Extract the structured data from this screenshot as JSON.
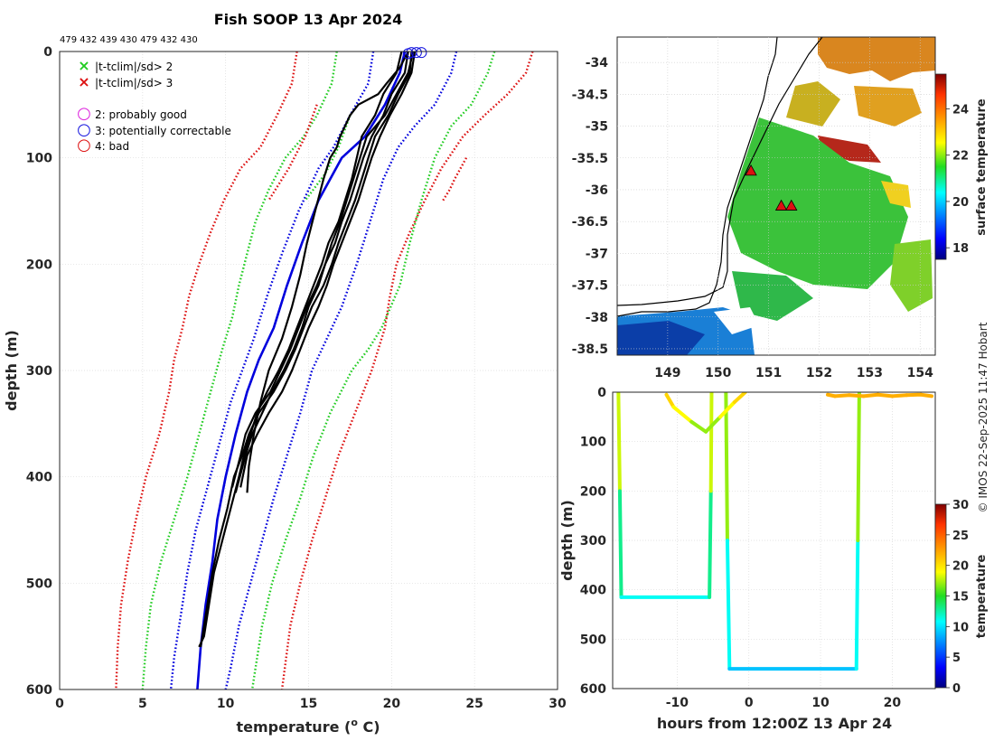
{
  "header": {
    "title": "Fish SOOP 13 Apr 2024",
    "ids": "479 432 439 430 479 432 430"
  },
  "credit": "© IMOS 22-Sep-2025 11:47 Hobart",
  "chart_data": [
    {
      "id": "profile",
      "type": "line",
      "xlabel": "temperature (",
      "xlabel_sup": "o",
      "xlabel_tail": " C)",
      "ylabel": "depth (m)",
      "xlim": [
        0,
        30
      ],
      "ylim": [
        600,
        0
      ],
      "xticks": [
        0,
        5,
        10,
        15,
        20,
        25,
        30
      ],
      "yticks": [
        0,
        100,
        200,
        300,
        400,
        500,
        600
      ],
      "legend": [
        {
          "symbol": "×",
          "color": "#22cc22",
          "label": "|t-tclim|/sd> 2"
        },
        {
          "symbol": "×",
          "color": "#dd1111",
          "label": "|t-tclim|/sd> 3"
        },
        {
          "symbol": "○",
          "color": "#dd22dd",
          "label": "2: probably good"
        },
        {
          "symbol": "○",
          "color": "#1111dd",
          "label": "3: potentially correctable"
        },
        {
          "symbol": "○",
          "color": "#dd1111",
          "label": "4: bad"
        }
      ],
      "climatology": [
        {
          "name": "clim-mean",
          "color": "#0000dd",
          "dotted": false,
          "x": [
            20.8,
            20.5,
            19.6,
            18.4,
            17.0,
            15.6,
            14.6,
            13.7,
            12.9,
            12.0,
            11.3,
            10.6,
            10.0,
            9.5,
            9.2,
            8.8,
            8.5,
            8.3
          ],
          "depth": [
            0,
            20,
            50,
            80,
            100,
            140,
            180,
            220,
            260,
            290,
            320,
            360,
            400,
            440,
            480,
            520,
            560,
            600
          ]
        },
        {
          "name": "clim-minus-1sd",
          "color": "#0000dd",
          "dotted": true,
          "x": [
            18.9,
            18.6,
            17.5,
            16.5,
            15.6,
            14.4,
            13.4,
            12.5,
            11.7,
            11.0,
            10.3,
            9.6,
            8.9,
            8.2,
            7.7,
            7.3,
            6.9,
            6.7
          ],
          "depth": [
            0,
            30,
            60,
            90,
            110,
            150,
            190,
            230,
            270,
            300,
            330,
            370,
            410,
            450,
            490,
            530,
            570,
            600
          ]
        },
        {
          "name": "clim-plus-1sd",
          "color": "#0000dd",
          "dotted": true,
          "x": [
            23.9,
            23.6,
            22.6,
            21.4,
            20.4,
            19.5,
            18.7,
            17.9,
            17.0,
            16.1,
            15.2,
            14.5,
            13.7,
            12.9,
            12.2,
            11.5,
            10.8,
            10.3,
            10.0
          ],
          "depth": [
            0,
            20,
            50,
            70,
            90,
            120,
            160,
            200,
            240,
            270,
            300,
            340,
            380,
            420,
            460,
            500,
            540,
            580,
            600
          ]
        },
        {
          "name": "clim-minus-2sd",
          "color": "#22cc22",
          "dotted": true,
          "x": [
            16.7,
            16.4,
            15.5,
            14.7,
            13.6,
            12.6,
            11.8,
            11.3,
            10.8,
            10.4,
            9.8,
            9.1,
            8.4,
            7.7,
            6.9,
            6.1,
            5.5,
            5.2,
            5.0
          ],
          "depth": [
            0,
            30,
            60,
            80,
            100,
            130,
            160,
            190,
            220,
            250,
            280,
            320,
            360,
            400,
            440,
            480,
            520,
            560,
            600
          ]
        },
        {
          "name": "clim-plus-2sd",
          "color": "#22cc22",
          "dotted": true,
          "x": [
            26.2,
            25.8,
            24.8,
            23.6,
            22.6,
            21.8,
            21.1,
            20.5,
            19.4,
            18.6,
            17.6,
            16.3,
            15.3,
            14.5,
            13.6,
            12.8,
            12.2,
            11.8,
            11.6
          ],
          "depth": [
            0,
            20,
            50,
            70,
            100,
            140,
            180,
            220,
            260,
            280,
            300,
            340,
            380,
            420,
            460,
            500,
            540,
            580,
            600
          ]
        },
        {
          "name": "clim-minus-3sd",
          "color": "#dd1111",
          "dotted": true,
          "x": [
            14.3,
            14.0,
            13.1,
            12.1,
            10.9,
            9.9,
            9.1,
            8.4,
            7.8,
            7.4,
            6.9,
            6.6,
            6.0,
            5.2,
            4.6,
            4.1,
            3.7,
            3.5,
            3.4
          ],
          "depth": [
            0,
            30,
            60,
            90,
            110,
            140,
            170,
            200,
            230,
            260,
            290,
            320,
            360,
            400,
            440,
            480,
            520,
            560,
            600
          ]
        },
        {
          "name": "clim-plus-3sd",
          "color": "#dd1111",
          "dotted": true,
          "x": [
            28.5,
            28.1,
            27.0,
            25.6,
            24.3,
            23.0,
            22.0,
            21.1,
            20.3,
            19.9,
            19.6,
            18.8,
            17.8,
            16.8,
            16.0,
            15.2,
            14.5,
            13.9,
            13.4
          ],
          "depth": [
            0,
            20,
            40,
            60,
            80,
            110,
            140,
            170,
            200,
            230,
            260,
            300,
            340,
            380,
            420,
            460,
            500,
            540,
            600
          ]
        },
        {
          "name": "clim-partial-left",
          "color": "#dd1111",
          "dotted": true,
          "x": [
            15.5,
            14.8,
            13.8,
            12.6
          ],
          "depth": [
            50,
            80,
            110,
            140
          ]
        },
        {
          "name": "clim-partial-green",
          "color": "#22cc22",
          "dotted": true,
          "x": [
            17.5,
            16.8,
            16.0,
            14.8
          ],
          "depth": [
            60,
            90,
            115,
            140
          ]
        },
        {
          "name": "clim-partial-right",
          "color": "#dd1111",
          "dotted": true,
          "x": [
            24.5,
            23.8,
            23.5,
            23.1
          ],
          "depth": [
            100,
            120,
            130,
            140
          ]
        }
      ],
      "profiles": [
        {
          "name": "cast-1",
          "x": [
            21.2,
            21.1,
            20.4,
            19.8,
            19.0,
            18.6,
            18.2,
            17.8,
            17.3,
            16.8,
            16.4,
            15.9,
            15.2,
            14.7,
            14.2,
            13.6,
            12.9,
            12.0,
            11.4,
            11.0,
            10.5,
            10.1,
            9.6,
            9.2,
            8.9,
            8.6,
            8.5
          ],
          "depth": [
            0,
            20,
            40,
            60,
            80,
            100,
            120,
            140,
            160,
            180,
            200,
            220,
            240,
            260,
            280,
            300,
            320,
            340,
            360,
            380,
            400,
            430,
            460,
            490,
            520,
            550,
            560
          ]
        },
        {
          "name": "cast-2",
          "x": [
            21.0,
            20.8,
            20.0,
            19.5,
            18.8,
            18.3,
            17.9,
            17.5,
            17.0,
            16.6,
            16.0,
            15.5,
            14.9,
            14.4,
            13.9,
            13.3,
            12.7,
            11.8,
            11.2,
            10.9,
            10.4
          ],
          "depth": [
            0,
            20,
            40,
            60,
            80,
            100,
            120,
            140,
            160,
            180,
            200,
            220,
            240,
            260,
            280,
            300,
            320,
            340,
            360,
            380,
            410
          ]
        },
        {
          "name": "cast-3",
          "x": [
            21.4,
            21.2,
            20.6,
            19.9,
            19.3,
            18.8,
            18.4,
            18.0,
            17.5,
            17.0,
            16.5,
            16.1,
            15.6,
            15.0,
            14.5,
            14.0,
            13.4,
            12.6,
            11.9,
            11.3,
            10.9
          ],
          "depth": [
            0,
            20,
            40,
            60,
            80,
            100,
            120,
            140,
            160,
            180,
            200,
            220,
            240,
            260,
            280,
            300,
            320,
            340,
            360,
            380,
            410
          ]
        },
        {
          "name": "cast-4",
          "x": [
            20.6,
            20.3,
            19.5,
            19.0,
            18.2,
            17.9,
            17.6,
            17.2,
            16.8,
            16.2,
            15.8,
            15.3,
            14.8,
            14.3,
            13.8,
            13.2,
            12.5,
            11.9,
            11.5,
            11.1,
            10.8,
            10.3,
            9.8,
            9.3,
            9.0,
            8.7,
            8.4
          ],
          "depth": [
            0,
            20,
            40,
            60,
            80,
            100,
            120,
            140,
            160,
            180,
            200,
            220,
            240,
            260,
            280,
            300,
            320,
            340,
            360,
            380,
            400,
            430,
            460,
            490,
            520,
            550,
            560
          ]
        },
        {
          "name": "cast-5",
          "x": [
            21.3,
            21.0,
            20.3,
            19.6,
            18.5,
            18.1,
            17.7,
            17.3,
            16.9,
            16.4,
            16.0,
            15.6,
            15.0,
            14.6,
            14.1,
            13.5,
            12.8,
            12.2,
            11.6,
            11.2,
            10.6
          ],
          "depth": [
            0,
            20,
            40,
            60,
            80,
            100,
            120,
            140,
            160,
            180,
            200,
            220,
            240,
            260,
            280,
            300,
            320,
            340,
            360,
            380,
            415
          ]
        },
        {
          "name": "cast-6",
          "x": [
            21.0,
            20.5,
            19.7,
            19.2,
            18.0,
            17.5,
            17.2,
            16.9,
            16.7,
            16.3,
            15.9,
            15.4,
            14.9,
            14.5,
            14.0,
            13.4,
            12.6,
            12.1,
            11.7,
            11.4,
            11.3
          ],
          "depth": [
            0,
            15,
            30,
            40,
            50,
            60,
            70,
            80,
            90,
            100,
            120,
            150,
            180,
            210,
            240,
            270,
            300,
            330,
            360,
            390,
            415
          ]
        }
      ],
      "flags": [
        {
          "color": "#1111dd",
          "x": 21.2,
          "depth": 1
        },
        {
          "color": "#1111dd",
          "x": 21.5,
          "depth": 1
        },
        {
          "color": "#1111dd",
          "x": 21.8,
          "depth": 1
        },
        {
          "color": "#1111dd",
          "x": 21.0,
          "depth": 2
        }
      ]
    },
    {
      "id": "map",
      "type": "heatmap",
      "xlim": [
        148.0,
        154.3
      ],
      "ylim": [
        -38.6,
        -33.6
      ],
      "xticks": [
        149,
        150,
        151,
        152,
        153,
        154
      ],
      "yticks": [
        -34,
        -34.5,
        -35,
        -35.5,
        -36,
        -36.5,
        -37,
        -37.5,
        -38,
        -38.5
      ],
      "colorbar": {
        "label": "surface temperature",
        "min": 17.5,
        "max": 25.5,
        "ticks": [
          18,
          20,
          22,
          24
        ]
      },
      "drop_sites": [
        {
          "lon": 150.65,
          "lat": -35.7
        },
        {
          "lon": 151.25,
          "lat": -36.25
        },
        {
          "lon": 151.45,
          "lat": -36.25
        }
      ]
    },
    {
      "id": "time-depth",
      "type": "scatter",
      "xlabel": "hours from 12:00Z 13 Apr 24",
      "ylabel": "depth (m)",
      "xlim": [
        -19,
        26
      ],
      "ylim": [
        600,
        0
      ],
      "xticks": [
        -10,
        0,
        10,
        20
      ],
      "yticks": [
        0,
        100,
        200,
        300,
        400,
        500,
        600
      ],
      "colorbar": {
        "label": "temperature",
        "min": 0,
        "max": 30,
        "ticks": [
          0,
          5,
          10,
          15,
          20,
          25,
          30
        ]
      },
      "tracks": [
        {
          "name": "drop-1",
          "t": [
            -18.2,
            -18.0,
            -17.8,
            -5.5,
            -5.3,
            -5.2
          ],
          "depth": [
            0,
            200,
            415,
            415,
            200,
            0
          ],
          "temp": [
            21,
            15,
            11,
            11,
            15,
            21
          ]
        },
        {
          "name": "drop-2",
          "t": [
            -3.2,
            -3.0,
            -2.7,
            15.0,
            15.2,
            15.4
          ],
          "depth": [
            0,
            300,
            560,
            560,
            300,
            0
          ],
          "temp": [
            21,
            13,
            9,
            9,
            13,
            21
          ]
        },
        {
          "name": "surface-1",
          "t": [
            -11.5,
            -10.5,
            -8.0,
            -6.0,
            -4.0,
            -2.0,
            -0.5
          ],
          "depth": [
            5,
            30,
            60,
            80,
            50,
            20,
            0
          ],
          "temp": [
            21,
            20,
            18,
            16,
            18,
            20,
            21
          ]
        },
        {
          "name": "surface-2",
          "t": [
            11.0,
            12.0,
            14.0,
            16.0,
            18.0,
            20.0,
            22.0,
            24.0,
            25.5
          ],
          "depth": [
            5,
            8,
            6,
            8,
            5,
            8,
            6,
            5,
            8
          ],
          "temp": [
            22,
            22,
            22,
            22,
            22,
            22,
            22,
            22,
            22
          ]
        }
      ]
    }
  ]
}
